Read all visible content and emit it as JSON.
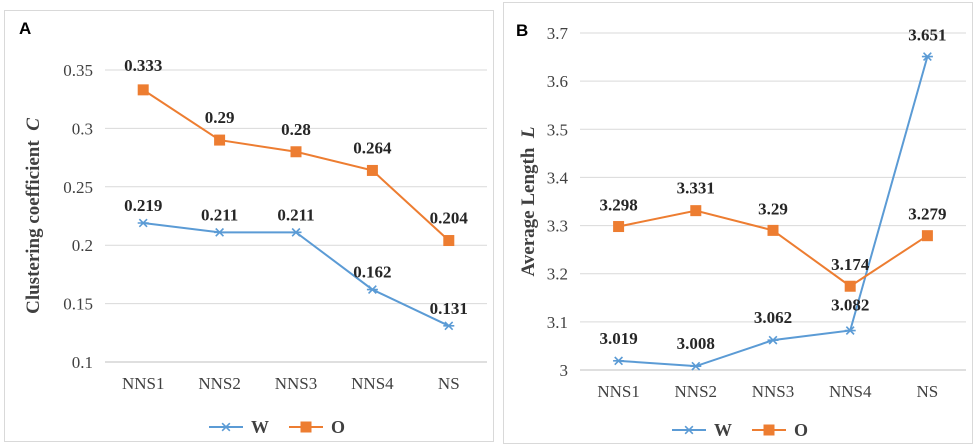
{
  "colors": {
    "W": "#5b9bd5",
    "O": "#ed7d31",
    "grid": "#d9d9d9",
    "text": "#404040"
  },
  "chart_data": [
    {
      "panel": "A",
      "type": "line",
      "categories": [
        "NNS1",
        "NNS2",
        "NNS3",
        "NNS4",
        "NS"
      ],
      "ylabel": "Clustering coefficient",
      "ylabel_symbol": "C",
      "ylim": [
        0.1,
        0.35
      ],
      "yticks": [
        0.1,
        0.15,
        0.2,
        0.25,
        0.3,
        0.35
      ],
      "ytick_labels": [
        "0.1",
        "0.15",
        "0.2",
        "0.25",
        "0.3",
        "0.35"
      ],
      "grid": true,
      "legend": "bottom",
      "series": [
        {
          "name": "W",
          "marker": "asterisk",
          "values": [
            0.219,
            0.211,
            0.211,
            0.162,
            0.131
          ],
          "labels": [
            "0.219",
            "0.211",
            "0.211",
            "0.162",
            "0.131"
          ]
        },
        {
          "name": "O",
          "marker": "square",
          "values": [
            0.333,
            0.29,
            0.28,
            0.264,
            0.204
          ],
          "labels": [
            "0.333",
            "0.29",
            "0.28",
            "0.264",
            "0.204"
          ]
        }
      ]
    },
    {
      "panel": "B",
      "type": "line",
      "categories": [
        "NNS1",
        "NNS2",
        "NNS3",
        "NNS4",
        "NS"
      ],
      "ylabel": "Average Length",
      "ylabel_symbol": "L",
      "ylim": [
        3,
        3.7
      ],
      "yticks": [
        3,
        3.1,
        3.2,
        3.3,
        3.4,
        3.5,
        3.6,
        3.7
      ],
      "ytick_labels": [
        "3",
        "3.1",
        "3.2",
        "3.3",
        "3.4",
        "3.5",
        "3.6",
        "3.7"
      ],
      "grid": true,
      "legend": "bottom",
      "series": [
        {
          "name": "W",
          "marker": "asterisk",
          "values": [
            3.019,
            3.008,
            3.062,
            3.082,
            3.651
          ],
          "labels": [
            "3.019",
            "3.008",
            "3.062",
            "3.082",
            "3.651"
          ]
        },
        {
          "name": "O",
          "marker": "square",
          "values": [
            3.298,
            3.331,
            3.29,
            3.174,
            3.279
          ],
          "labels": [
            "3.298",
            "3.331",
            "3.29",
            "3.174",
            "3.279"
          ]
        }
      ]
    }
  ]
}
